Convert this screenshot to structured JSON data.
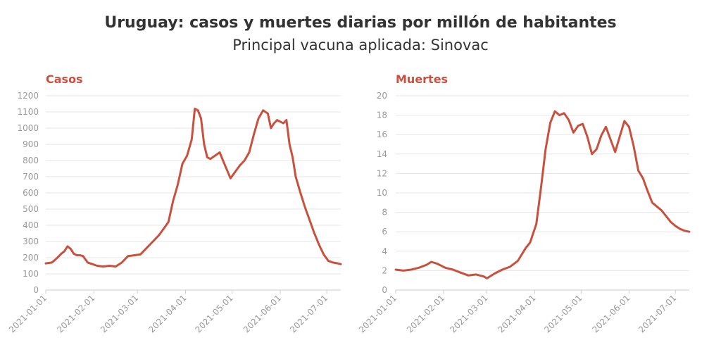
{
  "title": "Uruguay: casos y muertes diarias por millón de habitantes",
  "subtitle": "Principal vacuna aplicada: Sinovac",
  "line_color": "#c9503d",
  "chart_data": [
    {
      "type": "line",
      "title": "Casos",
      "xlabel": "",
      "ylabel": "",
      "x_ticks": [
        "2021-01-01",
        "2021-02-01",
        "2021-03-01",
        "2021-04-01",
        "2021-05-01",
        "2021-06-01",
        "2021-07-01"
      ],
      "x_range": [
        "2021-01-01",
        "2021-07-10"
      ],
      "ylim": [
        0,
        1200
      ],
      "y_ticks": [
        0,
        100,
        200,
        300,
        400,
        500,
        600,
        700,
        800,
        900,
        1000,
        1100,
        1200
      ],
      "grid": true,
      "series": [
        {
          "x": [
            "2021-01-01",
            "2021-01-05",
            "2021-01-08",
            "2021-01-11",
            "2021-01-13",
            "2021-01-15",
            "2021-01-17",
            "2021-01-19",
            "2021-01-21",
            "2021-01-23",
            "2021-01-25",
            "2021-01-28",
            "2021-01-31",
            "2021-02-03",
            "2021-02-07",
            "2021-02-11",
            "2021-02-15",
            "2021-02-19",
            "2021-02-23",
            "2021-02-27",
            "2021-03-03",
            "2021-03-07",
            "2021-03-11",
            "2021-03-15",
            "2021-03-18",
            "2021-03-21",
            "2021-03-24",
            "2021-03-27",
            "2021-03-30",
            "2021-04-02",
            "2021-04-05",
            "2021-04-07",
            "2021-04-09",
            "2021-04-11",
            "2021-04-13",
            "2021-04-15",
            "2021-04-17",
            "2021-04-20",
            "2021-04-23",
            "2021-04-26",
            "2021-04-30",
            "2021-05-03",
            "2021-05-06",
            "2021-05-09",
            "2021-05-12",
            "2021-05-15",
            "2021-05-18",
            "2021-05-21",
            "2021-05-24",
            "2021-05-26",
            "2021-05-28",
            "2021-05-30",
            "2021-06-01",
            "2021-06-03",
            "2021-06-05",
            "2021-06-07",
            "2021-06-09",
            "2021-06-11",
            "2021-06-14",
            "2021-06-17",
            "2021-06-20",
            "2021-06-23",
            "2021-06-26",
            "2021-06-29",
            "2021-07-02",
            "2021-07-05",
            "2021-07-08",
            "2021-07-10"
          ],
          "values": [
            165,
            170,
            195,
            225,
            240,
            270,
            255,
            225,
            215,
            215,
            210,
            170,
            160,
            150,
            145,
            150,
            145,
            170,
            210,
            215,
            220,
            260,
            300,
            340,
            380,
            420,
            550,
            650,
            780,
            830,
            930,
            1120,
            1110,
            1060,
            900,
            820,
            810,
            830,
            850,
            780,
            690,
            730,
            770,
            800,
            850,
            960,
            1060,
            1110,
            1090,
            1000,
            1030,
            1050,
            1040,
            1030,
            1050,
            900,
            820,
            700,
            600,
            510,
            430,
            350,
            280,
            220,
            180,
            170,
            165,
            160
          ]
        }
      ]
    },
    {
      "type": "line",
      "title": "Muertes",
      "xlabel": "",
      "ylabel": "",
      "x_ticks": [
        "2021-01-01",
        "2021-02-01",
        "2021-03-01",
        "2021-04-01",
        "2021-05-01",
        "2021-06-01",
        "2021-07-01"
      ],
      "x_range": [
        "2021-01-01",
        "2021-07-10"
      ],
      "ylim": [
        0,
        20
      ],
      "y_ticks": [
        0,
        2,
        4,
        6,
        8,
        10,
        12,
        14,
        16,
        18,
        20
      ],
      "grid": true,
      "series": [
        {
          "x": [
            "2021-01-01",
            "2021-01-06",
            "2021-01-11",
            "2021-01-16",
            "2021-01-21",
            "2021-01-24",
            "2021-01-28",
            "2021-02-02",
            "2021-02-07",
            "2021-02-12",
            "2021-02-17",
            "2021-02-22",
            "2021-02-27",
            "2021-03-01",
            "2021-03-06",
            "2021-03-11",
            "2021-03-16",
            "2021-03-21",
            "2021-03-26",
            "2021-03-29",
            "2021-04-02",
            "2021-04-05",
            "2021-04-08",
            "2021-04-11",
            "2021-04-14",
            "2021-04-17",
            "2021-04-20",
            "2021-04-23",
            "2021-04-26",
            "2021-04-29",
            "2021-05-02",
            "2021-05-05",
            "2021-05-08",
            "2021-05-11",
            "2021-05-14",
            "2021-05-17",
            "2021-05-20",
            "2021-05-23",
            "2021-05-26",
            "2021-05-29",
            "2021-06-01",
            "2021-06-04",
            "2021-06-07",
            "2021-06-10",
            "2021-06-13",
            "2021-06-16",
            "2021-06-19",
            "2021-06-22",
            "2021-06-25",
            "2021-06-28",
            "2021-07-01",
            "2021-07-04",
            "2021-07-07",
            "2021-07-10"
          ],
          "values": [
            2.1,
            2.0,
            2.1,
            2.3,
            2.6,
            2.9,
            2.7,
            2.3,
            2.1,
            1.8,
            1.5,
            1.6,
            1.4,
            1.2,
            1.7,
            2.1,
            2.4,
            3.0,
            4.3,
            4.9,
            6.8,
            10.5,
            14.5,
            17.2,
            18.4,
            18.0,
            18.2,
            17.5,
            16.2,
            16.9,
            17.1,
            15.8,
            14.0,
            14.5,
            15.9,
            16.8,
            15.5,
            14.2,
            15.8,
            17.4,
            16.8,
            14.8,
            12.3,
            11.5,
            10.2,
            9.0,
            8.6,
            8.2,
            7.6,
            7.0,
            6.6,
            6.3,
            6.1,
            6.0
          ]
        }
      ]
    }
  ]
}
